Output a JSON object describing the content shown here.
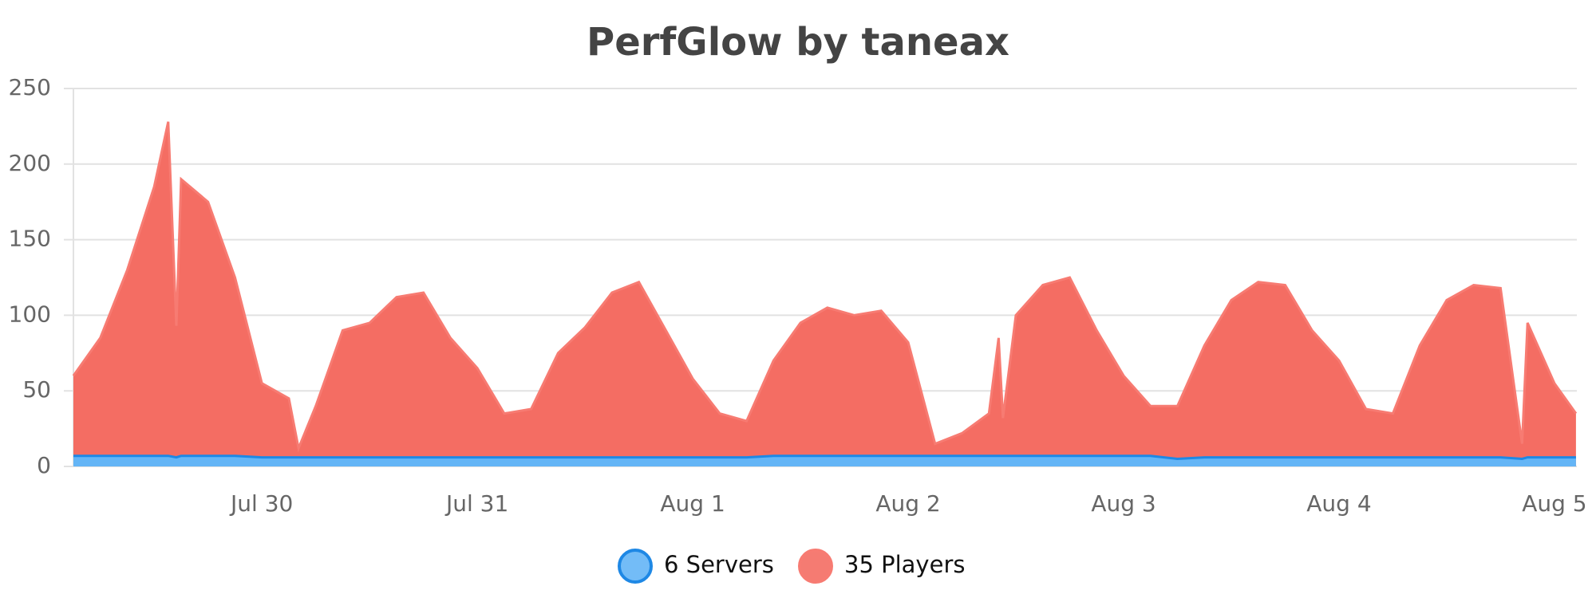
{
  "chart_data": {
    "type": "area",
    "title": "PerfGlow by taneax",
    "x": [
      -0.875,
      -0.75,
      -0.625,
      -0.5,
      -0.435,
      -0.397,
      -0.375,
      -0.25,
      -0.125,
      0,
      0.125,
      0.17,
      0.25,
      0.375,
      0.5,
      0.625,
      0.75,
      0.875,
      1.0,
      1.125,
      1.25,
      1.375,
      1.5,
      1.625,
      1.75,
      1.875,
      2.0,
      2.125,
      2.25,
      2.375,
      2.5,
      2.625,
      2.75,
      2.875,
      3.0,
      3.125,
      3.25,
      3.375,
      3.42,
      3.44,
      3.5,
      3.625,
      3.75,
      3.875,
      4.0,
      4.125,
      4.25,
      4.375,
      4.5,
      4.625,
      4.75,
      4.875,
      5.0,
      5.125,
      5.25,
      5.375,
      5.5,
      5.625,
      5.75,
      5.85,
      5.875,
      6.0,
      6.1
    ],
    "series": [
      {
        "name": "6 Servers",
        "color": "#1e88e5",
        "fill": "#64b5f6",
        "values": [
          7,
          7,
          7,
          7,
          7,
          6,
          7,
          7,
          7,
          6,
          6,
          6,
          6,
          6,
          6,
          6,
          6,
          6,
          6,
          6,
          6,
          6,
          6,
          6,
          6,
          6,
          6,
          6,
          6,
          7,
          7,
          7,
          7,
          7,
          7,
          7,
          7,
          7,
          7,
          7,
          7,
          7,
          7,
          7,
          7,
          7,
          5,
          6,
          6,
          6,
          6,
          6,
          6,
          6,
          6,
          6,
          6,
          6,
          6,
          5,
          6,
          6,
          6
        ]
      },
      {
        "name": "35 Players",
        "color": "#f77b72",
        "fill": "#f46d63",
        "values": [
          60,
          85,
          130,
          185,
          228,
          93,
          190,
          175,
          125,
          55,
          45,
          12,
          40,
          90,
          95,
          112,
          115,
          85,
          65,
          35,
          38,
          75,
          92,
          115,
          122,
          90,
          58,
          35,
          30,
          70,
          95,
          105,
          100,
          103,
          82,
          15,
          22,
          35,
          85,
          32,
          100,
          120,
          125,
          90,
          60,
          40,
          40,
          80,
          110,
          122,
          120,
          90,
          70,
          38,
          35,
          80,
          110,
          120,
          118,
          15,
          95,
          55,
          35
        ]
      }
    ],
    "xlim": [
      -0.875,
      6.104
    ],
    "xticks": [
      {
        "value": 0,
        "label": "Jul 30"
      },
      {
        "value": 1,
        "label": "Jul 31"
      },
      {
        "value": 2,
        "label": "Aug 1"
      },
      {
        "value": 3,
        "label": "Aug 2"
      },
      {
        "value": 4,
        "label": "Aug 3"
      },
      {
        "value": 5,
        "label": "Aug 4"
      },
      {
        "value": 6,
        "label": "Aug 5"
      }
    ],
    "ylim": [
      0,
      250
    ],
    "yticks": [
      0,
      50,
      100,
      150,
      200,
      250
    ],
    "grid": true
  }
}
